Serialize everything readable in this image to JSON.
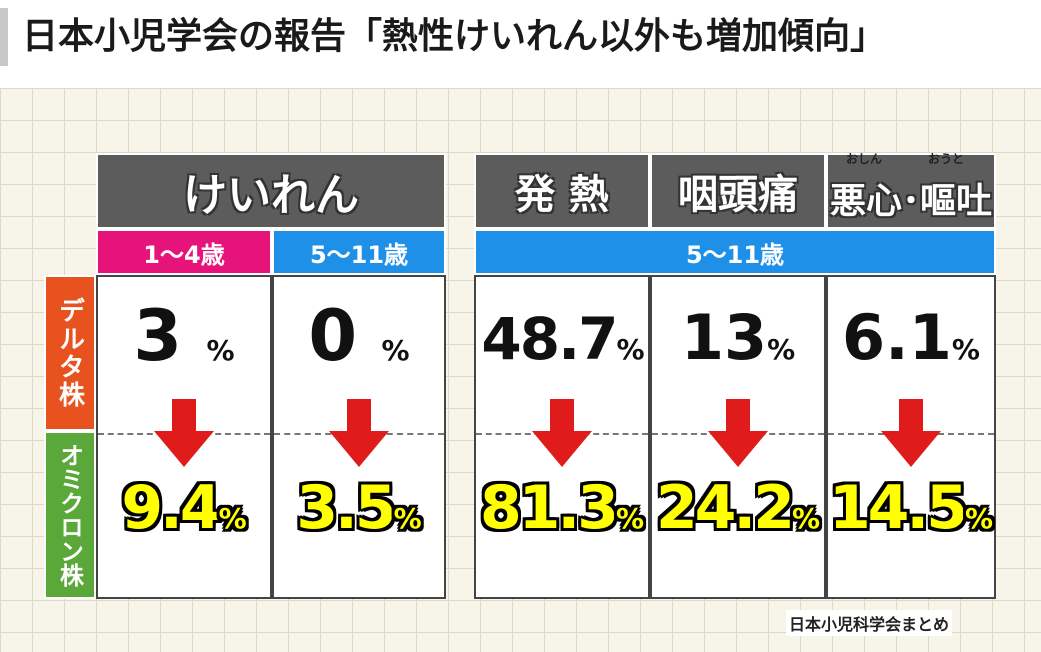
{
  "headline": "日本小児学会の報告「熱性けいれん以外も増加傾向」",
  "table": {
    "group_left": {
      "label": "けいれん"
    },
    "headers_right": [
      {
        "label": "発 熱",
        "ruby": ""
      },
      {
        "label": "咽頭痛",
        "ruby": ""
      },
      {
        "label": "悪心･嘔吐",
        "ruby_left": "おしん",
        "ruby_right": "おうと"
      }
    ],
    "ages": [
      {
        "label": "1〜4歳",
        "color": "#e6147a"
      },
      {
        "label": "5〜11歳",
        "color": "#1e90e8"
      },
      {
        "label": "5〜11歳",
        "color": "#1e90e8"
      }
    ],
    "rows": [
      {
        "label": "デルタ株",
        "color": "#e8521e"
      },
      {
        "label": "オミクロン株",
        "color": "#5aa83a"
      }
    ],
    "unit": "%",
    "columns": [
      {
        "delta": "3",
        "omicron": "9.4"
      },
      {
        "delta": "0",
        "omicron": "3.5"
      },
      {
        "delta": "48.7",
        "omicron": "81.3"
      },
      {
        "delta": "13",
        "omicron": "24.2"
      },
      {
        "delta": "6.1",
        "omicron": "14.5"
      }
    ]
  },
  "source": "日本小児科学会まとめ",
  "colors": {
    "arrow": "#e01b1b",
    "header_bg": "#5c5c5c",
    "highlight": "#ffff00"
  }
}
